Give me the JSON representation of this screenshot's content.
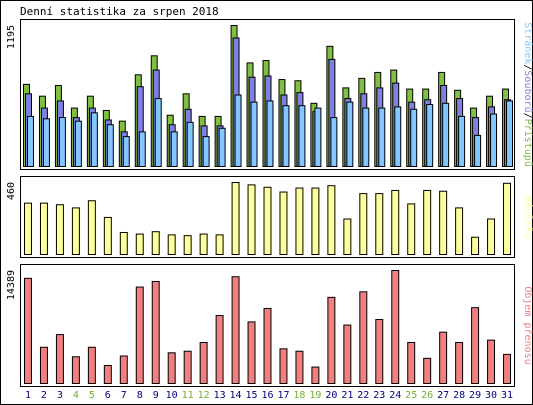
{
  "chart_data": {
    "type": "bar",
    "title": "Denní statistika za srpen 2018",
    "colors": {
      "background": "#ffffff",
      "frame": "#000000",
      "hits": "#80c040",
      "files": "#8080e0",
      "pages": "#80c8ff",
      "visits": "#ffff99",
      "volume": "#f08080",
      "weekend": "#70b030",
      "weekday": "#000080"
    },
    "categories": [
      "1",
      "2",
      "3",
      "4",
      "5",
      "6",
      "7",
      "8",
      "9",
      "10",
      "11",
      "12",
      "13",
      "14",
      "15",
      "16",
      "17",
      "18",
      "19",
      "20",
      "21",
      "22",
      "23",
      "24",
      "25",
      "26",
      "27",
      "28",
      "29",
      "30",
      "31"
    ],
    "weekend_days": [
      "4",
      "5",
      "11",
      "12",
      "18",
      "19",
      "25",
      "26"
    ],
    "panels": [
      {
        "ylabel_parts": [
          {
            "text": "Stránek",
            "series": "pages"
          },
          {
            "text": "/",
            "series": "separator"
          },
          {
            "text": "Souborů",
            "series": "files"
          },
          {
            "text": "/",
            "series": "separator"
          },
          {
            "text": "Přístupů",
            "series": "hits"
          }
        ],
        "ymax_label": "1195",
        "ylim": [
          0,
          1195
        ],
        "series": [
          {
            "key": "hits",
            "values": [
              700,
              600,
              690,
              500,
              600,
              480,
              390,
              780,
              940,
              440,
              620,
              430,
              430,
              1195,
              880,
              900,
              740,
              730,
              540,
              1020,
              670,
              750,
              800,
              820,
              660,
              660,
              800,
              650,
              500,
              600,
              660
            ]
          },
          {
            "key": "files",
            "values": [
              620,
              500,
              560,
              420,
              500,
              400,
              300,
              680,
              820,
              360,
              490,
              350,
              350,
              1090,
              760,
              770,
              610,
              630,
              470,
              910,
              580,
              620,
              670,
              710,
              550,
              570,
              690,
              580,
              420,
              510,
              570
            ]
          },
          {
            "key": "pages",
            "values": [
              430,
              410,
              420,
              390,
              460,
              360,
              260,
              300,
              580,
              300,
              380,
              260,
              330,
              610,
              550,
              560,
              520,
              520,
              500,
              420,
              550,
              500,
              500,
              510,
              490,
              530,
              540,
              430,
              270,
              450,
              560
            ]
          }
        ]
      },
      {
        "ylabel_parts": [
          {
            "text": "Návštěv",
            "series": "visits"
          }
        ],
        "ymax_label": "460",
        "ylim": [
          0,
          460
        ],
        "series": [
          {
            "key": "visits",
            "values": [
              330,
              330,
              320,
              300,
              345,
              240,
              145,
              135,
              150,
              130,
              125,
              135,
              130,
              460,
              445,
              430,
              400,
              425,
              425,
              440,
              230,
              390,
              390,
              410,
              325,
              410,
              405,
              300,
              115,
              230,
              455
            ]
          }
        ]
      },
      {
        "ylabel_parts": [
          {
            "text": "Objem přenosu",
            "series": "volume"
          }
        ],
        "ymax_label": "14389",
        "ylim": [
          0,
          14389
        ],
        "series": [
          {
            "key": "volume",
            "values": [
              13400,
              4700,
              6300,
              3500,
              4700,
              2400,
              3600,
              12300,
              13000,
              4000,
              4200,
              5300,
              8700,
              13600,
              7900,
              9600,
              4500,
              4200,
              2200,
              11000,
              7500,
              11700,
              8200,
              14389,
              5300,
              3300,
              6600,
              5300,
              9700,
              5600,
              3800
            ]
          }
        ]
      }
    ]
  }
}
